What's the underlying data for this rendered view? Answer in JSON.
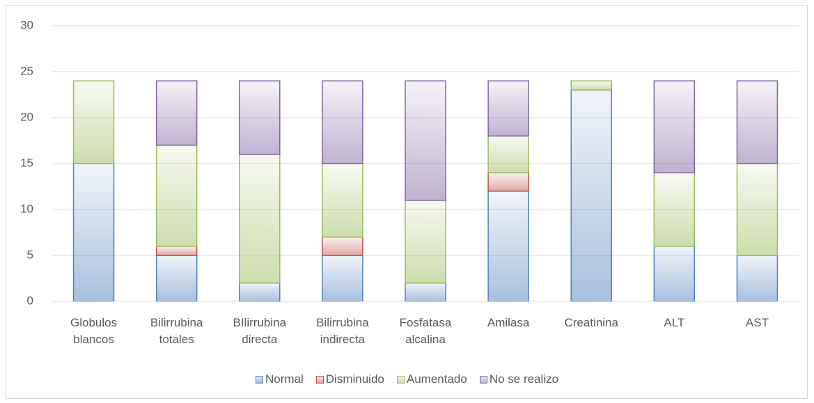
{
  "chart_data": {
    "type": "stacked_bar",
    "categories": [
      "Globulos blancos",
      "Bilirrubina totales",
      "BIlirrubina directa",
      "Bilirrubina indirecta",
      "Fosfatasa alcalina",
      "Amilasa",
      "Creatinina",
      "ALT",
      "AST"
    ],
    "series": [
      {
        "name": "Normal",
        "color": "#4f81bd",
        "values": [
          15,
          5,
          2,
          5,
          2,
          12,
          23,
          6,
          5
        ]
      },
      {
        "name": "Disminuido",
        "color": "#c0504d",
        "values": [
          0,
          1,
          0,
          2,
          0,
          2,
          0,
          0,
          0
        ]
      },
      {
        "name": "Aumentado",
        "color": "#9bbb59",
        "values": [
          9,
          11,
          14,
          8,
          9,
          4,
          1,
          8,
          10
        ]
      },
      {
        "name": "No se realizo",
        "color": "#8064a2",
        "values": [
          0,
          7,
          8,
          9,
          13,
          6,
          0,
          10,
          9
        ]
      }
    ],
    "ylim": [
      0,
      30
    ],
    "yticks": [
      0,
      5,
      10,
      15,
      20,
      25,
      30
    ],
    "grid": true,
    "legend": "bottom"
  }
}
